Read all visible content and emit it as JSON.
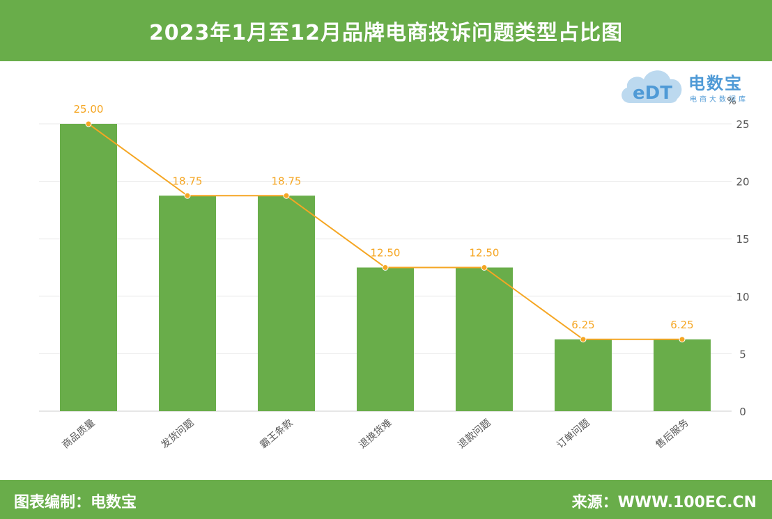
{
  "header": {
    "title": "2023年1月至12月品牌电商投诉问题类型占比图"
  },
  "logo": {
    "name": "电数宝",
    "tagline": "电商大数据库",
    "mark": "eDT"
  },
  "footer": {
    "credit": "图表编制：电数宝",
    "source": "来源：WWW.100EC.CN"
  },
  "colors": {
    "header_bg": "#69ad4a",
    "bar": "#69ad4a",
    "line": "#f5a623",
    "label": "#f5a623",
    "axis_text": "#555555",
    "grid": "#e8e8e8",
    "logo": "#4f9ad6"
  },
  "chart_data": {
    "type": "bar",
    "categories": [
      "商品质量",
      "发货问题",
      "霸王条款",
      "退换货难",
      "退款问题",
      "订单问题",
      "售后服务"
    ],
    "series": [
      {
        "type": "bar",
        "values": [
          25.0,
          18.75,
          18.75,
          12.5,
          12.5,
          6.25,
          6.25
        ]
      },
      {
        "type": "line",
        "values": [
          25.0,
          18.75,
          18.75,
          12.5,
          12.5,
          6.25,
          6.25
        ]
      }
    ],
    "data_labels": [
      "25.00",
      "18.75",
      "18.75",
      "12.50",
      "12.50",
      "6.25",
      "6.25"
    ],
    "yunit": "%",
    "ylim": [
      0,
      25
    ],
    "yticks": [
      0,
      5,
      10,
      15,
      20,
      25
    ],
    "yaxis_position": "right",
    "grid": true,
    "legend": "none"
  }
}
